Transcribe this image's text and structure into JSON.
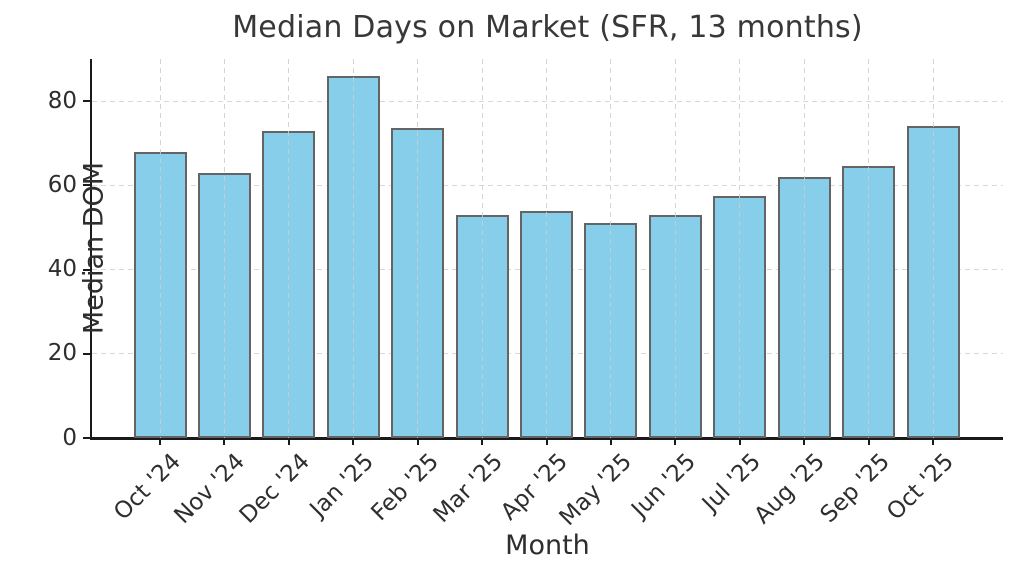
{
  "chart_data": {
    "type": "bar",
    "title": "Median Days on Market (SFR, 13 months)",
    "xlabel": "Month",
    "ylabel": "Median DOM",
    "categories": [
      "Oct '24",
      "Nov '24",
      "Dec '24",
      "Jan '25",
      "Feb '25",
      "Mar '25",
      "Apr '25",
      "May '25",
      "Jun '25",
      "Jul '25",
      "Aug '25",
      "Sep '25",
      "Oct '25"
    ],
    "values": [
      68,
      63,
      73,
      86,
      73.5,
      53,
      54,
      51,
      53,
      57.5,
      62,
      64.5,
      74
    ],
    "ylim": [
      0,
      90
    ],
    "yticks": [
      0,
      20,
      40,
      60,
      80
    ],
    "grid": "dashed both axes, horizontal behind bars, vertical over bars",
    "legend": "none",
    "colors": {
      "bar_fill": "#87CEEB",
      "bar_edge": "#646464",
      "grid": "#D8D8D8",
      "spine": "#1A1A1A",
      "text": "#2E2E2E",
      "title_text": "#383838"
    }
  }
}
